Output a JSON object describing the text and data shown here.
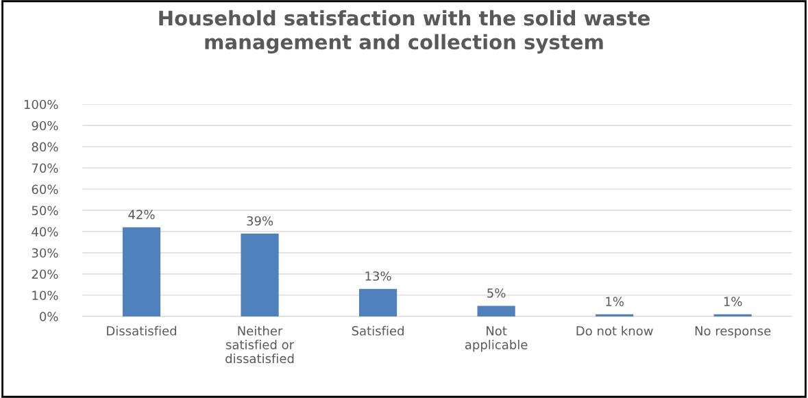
{
  "chart_data": {
    "type": "bar",
    "title": "Household satisfaction with the solid waste\nmanagement and collection system",
    "categories": [
      "Dissatisfied",
      "Neither\nsatisfied or\ndissatisfied",
      "Satisfied",
      "Not\napplicable",
      "Do not know",
      "No response"
    ],
    "values": [
      42,
      39,
      13,
      5,
      1,
      1
    ],
    "value_labels": [
      "42%",
      "39%",
      "13%",
      "5%",
      "1%",
      "1%"
    ],
    "color": "#4f81bd",
    "ylim": [
      0,
      100
    ],
    "yticks": [
      {
        "value": 0,
        "label": "0%"
      },
      {
        "value": 10,
        "label": "10%"
      },
      {
        "value": 20,
        "label": "20%"
      },
      {
        "value": 30,
        "label": "30%"
      },
      {
        "value": 40,
        "label": "40%"
      },
      {
        "value": 50,
        "label": "50%"
      },
      {
        "value": 60,
        "label": "60%"
      },
      {
        "value": 70,
        "label": "70%"
      },
      {
        "value": 80,
        "label": "80%"
      },
      {
        "value": 90,
        "label": "90%"
      },
      {
        "value": 100,
        "label": "100%"
      }
    ],
    "grid": "y"
  }
}
